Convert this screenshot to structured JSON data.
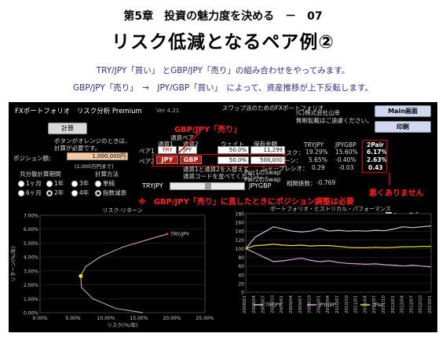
{
  "header": {
    "chapter": "第5章　投資の魅力度を決める　－　07",
    "title": "リスク低減となるペア例②",
    "line1": "TRY/JPY「買い」 とGBP/JPY「売り」の組み合わせをやってみます。",
    "line2": "GBP/JPY「売り」　→　JPY/GBP「買い」　によって、資産推移が上下反転します。"
  },
  "app": {
    "title": "FXポートフォリオ　リスク分析 Premium",
    "version": "Ver 4.21",
    "center_title": "スワップ派のためのFXポートフォリオ",
    "copyright": "(C)株式会社山幸",
    "no_reprint": "無断転載はご遠慮ください。",
    "main_button": "Main画面",
    "print_button": "印刷",
    "calc_button": "計算",
    "instructions": [
      "ボタンがオレンジのときは、",
      "計算が必要です。"
    ],
    "position_label": "ポジション額：",
    "position_value": "1,000,000円",
    "position_note": "(1,000万円まで)",
    "common_period_label": "共分散計算期間",
    "period_options": [
      "1ヶ月",
      "1年",
      "3年",
      "6ヶ月",
      "2年",
      "4年"
    ],
    "period_selected": "2年",
    "calc_method_label": "計算方法",
    "calc_methods": [
      "単純",
      "指数減衰"
    ],
    "calc_method_selected": "指数減衰",
    "pair_header": "通貨ペア",
    "cur1_header": "通貨1",
    "cur2_header": "通貨2",
    "weight_header": "ウェイト",
    "amount_header": "保有金額",
    "pair1_label": "ペア1",
    "pair1_cur1": "TRY",
    "pair1_cur2": "JPY",
    "pair1_weight": "50.0%",
    "pair1_amount": "11,299",
    "pair2_label": "ペア2",
    "pair2_cur1": "JPY",
    "pair2_cur2": "GBP",
    "pair2_weight": "50.0%",
    "pair2_amount": "500,000",
    "note1": "通貨1と通貨2を入替えて",
    "note2": "通貨コードを並べてください。",
    "pair1_name": "TRYJPY",
    "pair2_name": "JPYGBP",
    "correlation_label": "相関係数：",
    "correlation_value": "-0.769",
    "stats_headers": [
      "TRYJPY",
      "JPYGBP",
      "2Pair"
    ],
    "stats": [
      {
        "label": "リスク：",
        "v1": "19.29%",
        "v2": "15.60%",
        "v3": "6.17%"
      },
      {
        "label": "リターン：",
        "v1": "5.65%",
        "v2": "-0.40%",
        "v3": "2.63%"
      },
      {
        "label": "シャープレシオ：",
        "v1": "0.29",
        "v2": "-0.03",
        "v3": "0.43"
      }
    ],
    "pair1_short_label": "Pair1のSwap",
    "pair2_short_label": "Pair2のSwap"
  },
  "annotations": {
    "gbpjpy_sell": "GBP/JPY「売り」",
    "reduce_notice": "※　GBP/JPY「売り」に直したときにポジション調整は必要",
    "not_bad": "悪くありません"
  },
  "chart_data": [
    {
      "type": "scatter",
      "title": "リスク-リターン",
      "xlabel": "リスク(%/年)",
      "ylabel": "リターン(%/年)",
      "xlim": [
        0,
        25
      ],
      "ylim": [
        0,
        7
      ],
      "x_ticks": [
        "0.00%",
        "5.00%",
        "10.00%",
        "15.00%",
        "20.00%",
        "25.00%"
      ],
      "y_ticks": [
        "0.00%",
        "1.00%",
        "2.00%",
        "3.00%",
        "4.00%",
        "5.00%",
        "6.00%",
        "7.00%"
      ],
      "curve": [
        [
          15.6,
          -0.4
        ],
        [
          11.5,
          0.3
        ],
        [
          8.0,
          1.0
        ],
        [
          6.3,
          1.8
        ],
        [
          6.17,
          2.63
        ],
        [
          6.9,
          3.3
        ],
        [
          9.1,
          4.0
        ],
        [
          12.5,
          4.7
        ],
        [
          16.0,
          5.2
        ],
        [
          19.29,
          5.65
        ]
      ],
      "labels": [
        {
          "text": "TRY/JPY",
          "x": 19.29,
          "y": 5.65
        }
      ],
      "highlight": {
        "x": 6.17,
        "y": 2.63
      }
    },
    {
      "type": "line",
      "title": "ポートフォリオ・ヒストリカル・パフォーマンス",
      "ylim": [
        0,
        180
      ],
      "y_ticks": [
        0,
        20,
        40,
        60,
        80,
        100,
        120,
        140,
        160,
        180
      ],
      "x": [
        "2008/01",
        "2008/04",
        "2008/07",
        "2008/10",
        "2009/01",
        "2009/04",
        "2009/07",
        "2009/10",
        "2010/01",
        "2010/04",
        "2010/07",
        "2010/10",
        "2011/01",
        "2011/04",
        "2011/07",
        "2011/10",
        "2012/01",
        "2012/04",
        "2012/07",
        "2012/10",
        "2013/01"
      ],
      "series": [
        {
          "name": "TRYJPY",
          "color": "#c8c8d0",
          "values": [
            100,
            126,
            138,
            150,
            145,
            140,
            138,
            140,
            146,
            140,
            142,
            140,
            141,
            140,
            142,
            141,
            145,
            150,
            148,
            150,
            152
          ]
        },
        {
          "name": "JPYGBP",
          "color": "#d9a6e0",
          "values": [
            100,
            90,
            80,
            70,
            72,
            75,
            78,
            73,
            70,
            72,
            68,
            66,
            65,
            64,
            65,
            63,
            62,
            60,
            62,
            60,
            58
          ]
        },
        {
          "name": "2Pair",
          "color": "#f0e040",
          "values": [
            100,
            107,
            108,
            110,
            108,
            107,
            108,
            106,
            107,
            107,
            105,
            103,
            102,
            102,
            103,
            102,
            103,
            104,
            104,
            105,
            105
          ]
        }
      ],
      "legend": "bottom"
    }
  ],
  "swap_label": "Swap考慮"
}
